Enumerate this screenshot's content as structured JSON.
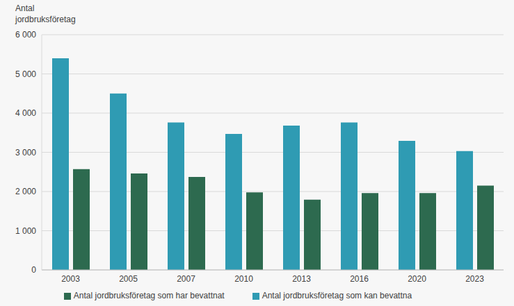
{
  "chart_data": {
    "type": "bar",
    "y_label": "Antal jordbruksföretag",
    "categories": [
      "2003",
      "2005",
      "2007",
      "2010",
      "2013",
      "2016",
      "2020",
      "2023"
    ],
    "series": [
      {
        "name": "Antal jordbruksföretag som kan bevattna",
        "color": "#2f9bb3",
        "values": [
          5400,
          4500,
          3760,
          3470,
          3680,
          3760,
          3290,
          3030
        ]
      },
      {
        "name": "Antal jordbruksföretag som har bevattnat",
        "color": "#2d6a4f",
        "values": [
          2570,
          2460,
          2370,
          1980,
          1790,
          1960,
          1960,
          2150
        ]
      }
    ],
    "ylim": [
      0,
      6000
    ],
    "yticks": [
      0,
      {
        "value": 1000,
        "label": "1 000"
      },
      {
        "value": 2000,
        "label": "2 000"
      },
      {
        "value": 3000,
        "label": "3 000"
      },
      {
        "value": 4000,
        "label": "4 000"
      },
      {
        "value": 5000,
        "label": "5 000"
      },
      {
        "value": 6000,
        "label": "6 000"
      }
    ],
    "grid": true,
    "legend": "bottom"
  }
}
